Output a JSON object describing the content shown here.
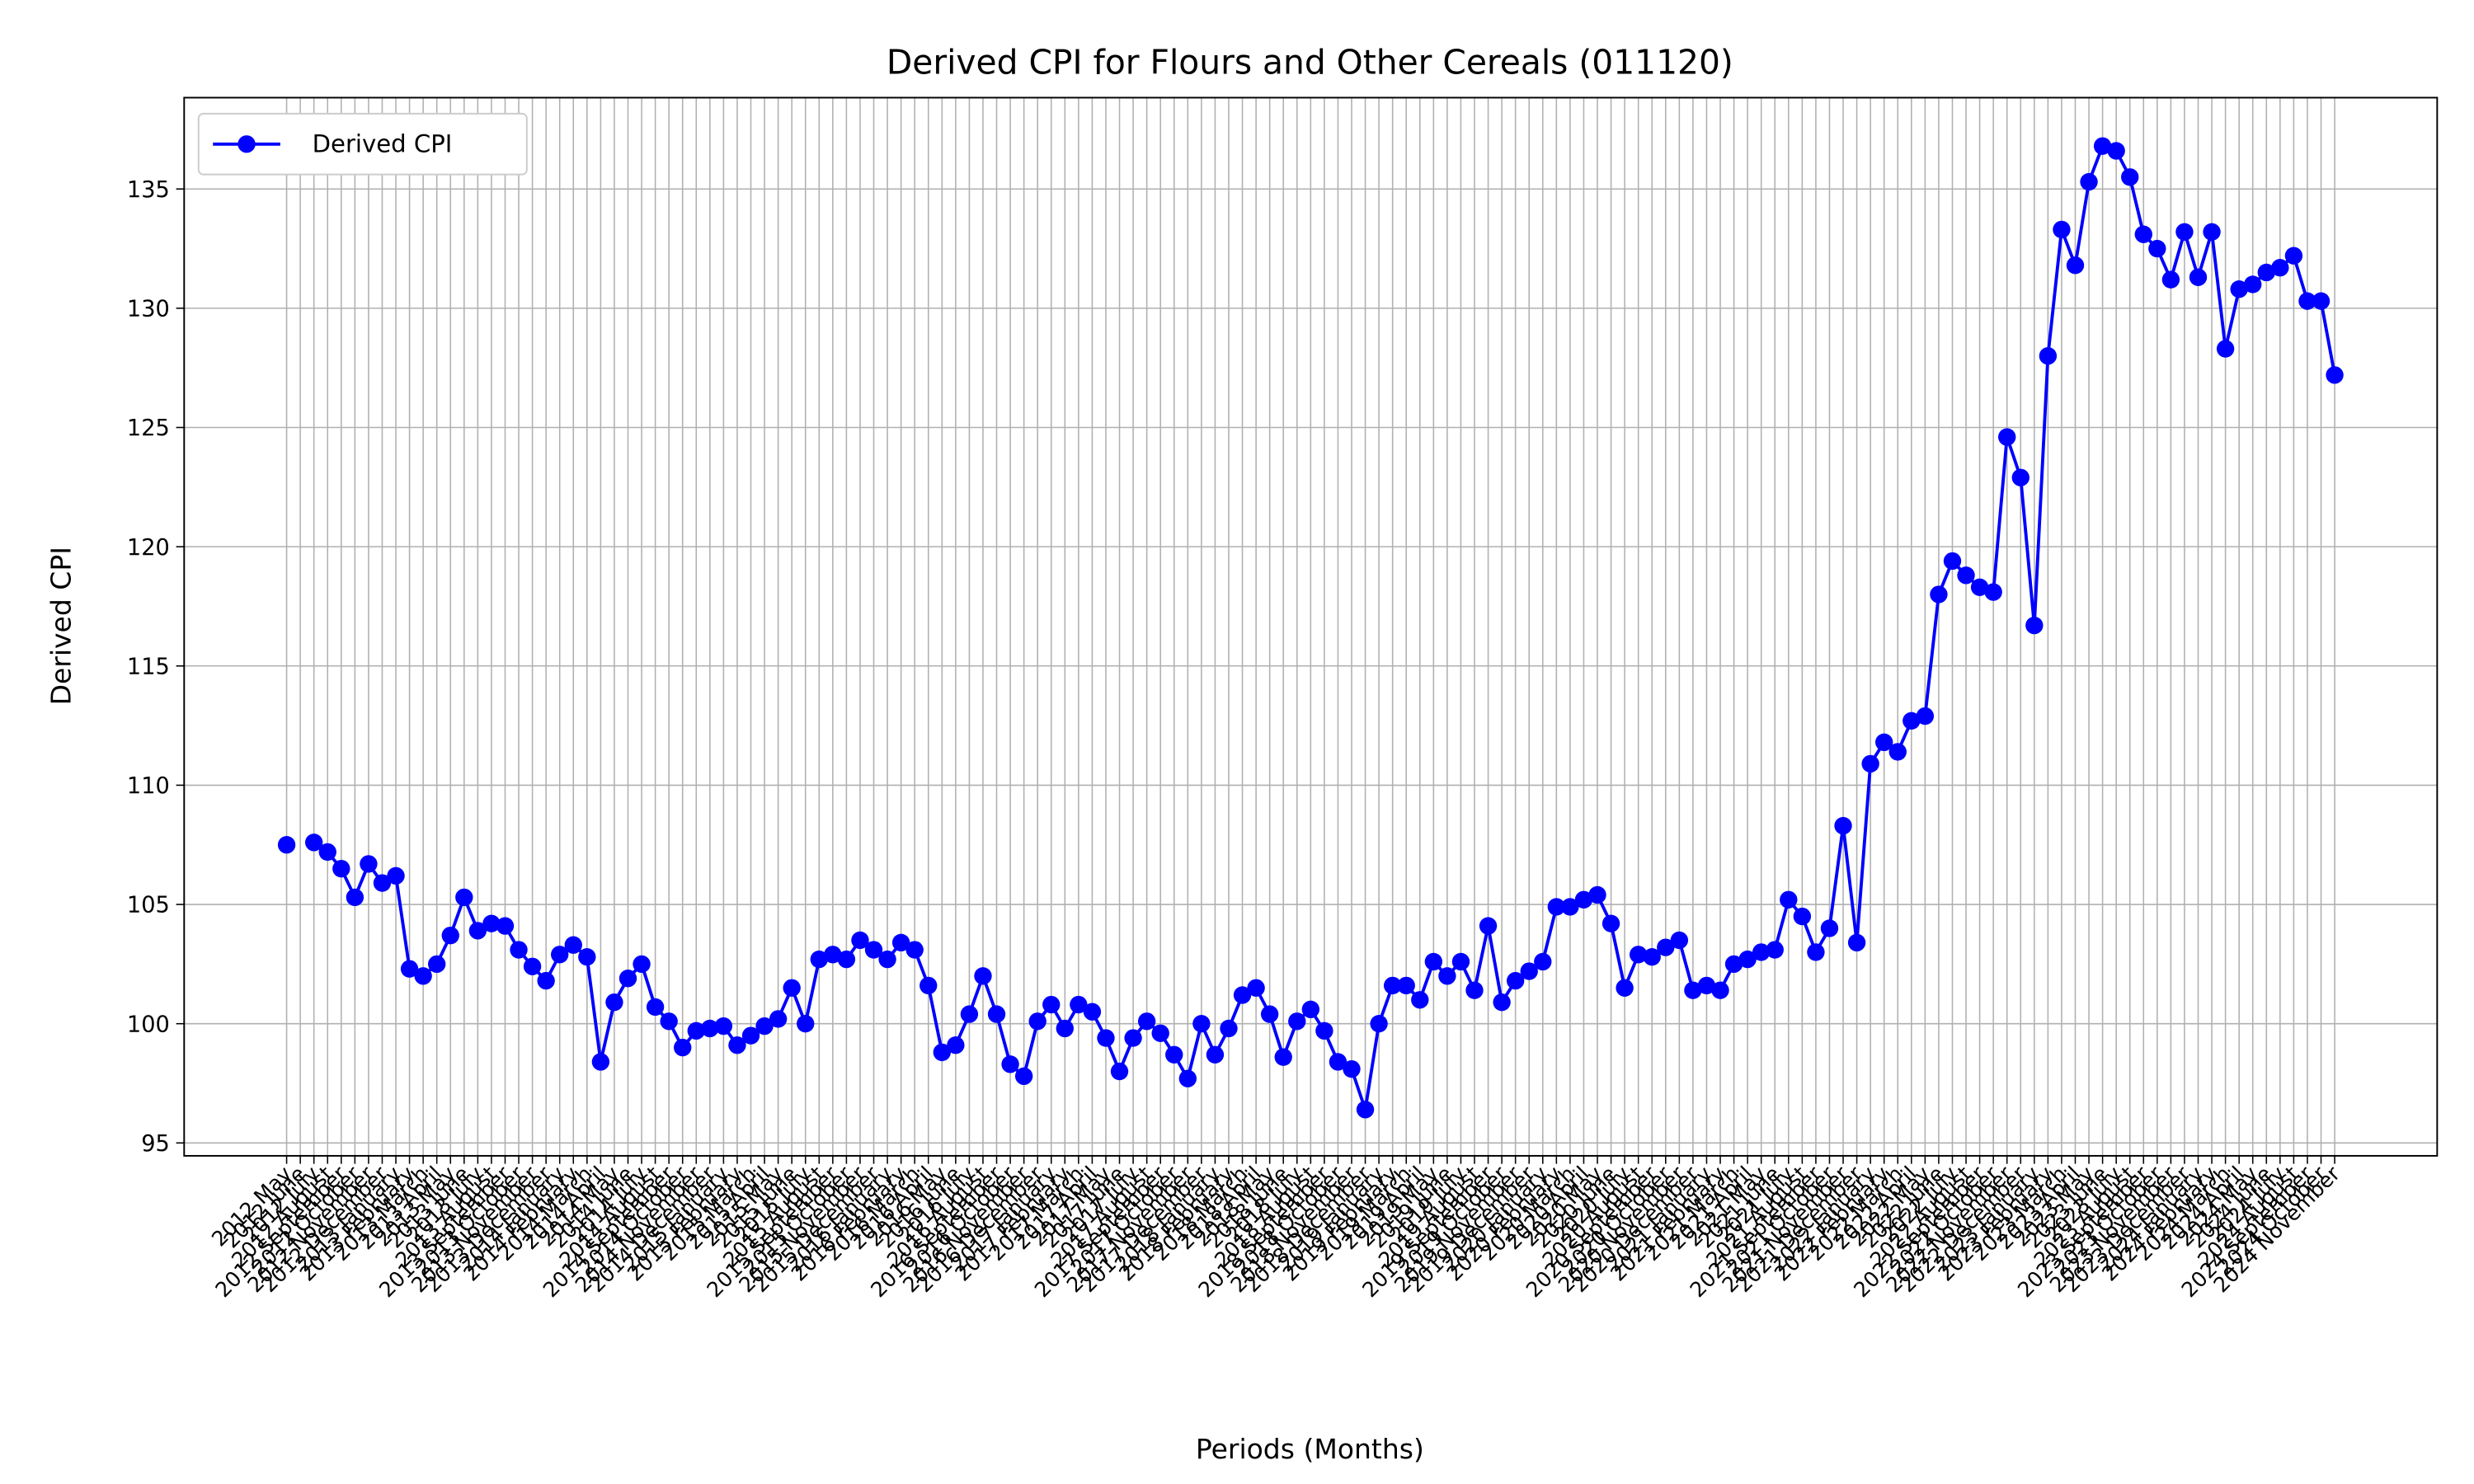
{
  "chart_data": {
    "type": "line",
    "title": "Derived CPI for Flours and Other Cereals (011120)",
    "x_label": "Periods (Months)",
    "y_label": "Derived CPI",
    "categories": [
      "2012 May",
      "2012 June",
      "2012 July",
      "2012 August",
      "2012 September",
      "2012 October",
      "2012 November",
      "2012 December",
      "2013 January",
      "2013 February",
      "2013 March",
      "2013 April",
      "2013 May",
      "2013 June",
      "2013 July",
      "2013 August",
      "2013 September",
      "2013 October",
      "2013 November",
      "2013 December",
      "2014 January",
      "2014 February",
      "2014 March",
      "2014 April",
      "2014 May",
      "2014 June",
      "2014 July",
      "2014 August",
      "2014 September",
      "2014 October",
      "2014 November",
      "2014 December",
      "2015 January",
      "2015 February",
      "2015 March",
      "2015 April",
      "2015 May",
      "2015 June",
      "2015 July",
      "2015 August",
      "2015 September",
      "2015 October",
      "2015 November",
      "2015 December",
      "2016 January",
      "2016 February",
      "2016 March",
      "2016 April",
      "2016 May",
      "2016 June",
      "2016 July",
      "2016 August",
      "2016 September",
      "2016 October",
      "2016 November",
      "2016 December",
      "2017 January",
      "2017 February",
      "2017 March",
      "2017 April",
      "2017 May",
      "2017 June",
      "2017 July",
      "2017 August",
      "2017 September",
      "2017 October",
      "2017 November",
      "2017 December",
      "2018 January",
      "2018 February",
      "2018 March",
      "2018 April",
      "2018 May",
      "2018 June",
      "2018 July",
      "2018 August",
      "2018 September",
      "2018 October",
      "2018 November",
      "2018 December",
      "2019 January",
      "2019 February",
      "2019 March",
      "2019 April",
      "2019 May",
      "2019 June",
      "2019 July",
      "2019 August",
      "2019 September",
      "2019 October",
      "2019 November",
      "2019 December",
      "2020 January",
      "2020 February",
      "2020 March",
      "2020 April",
      "2020 May",
      "2020 June",
      "2020 July",
      "2020 August",
      "2020 September",
      "2020 October",
      "2020 November",
      "2020 December",
      "2021 January",
      "2021 February",
      "2021 March",
      "2021 April",
      "2021 May",
      "2021 June",
      "2021 July",
      "2021 August",
      "2021 September",
      "2021 October",
      "2021 November",
      "2021 December",
      "2022 January",
      "2022 February",
      "2022 March",
      "2022 April",
      "2022 May",
      "2022 June",
      "2022 July",
      "2022 August",
      "2022 September",
      "2022 October",
      "2022 November",
      "2022 December",
      "2023 January",
      "2023 February",
      "2023 March",
      "2023 April",
      "2023 May",
      "2023 June",
      "2023 July",
      "2023 August",
      "2023 September",
      "2023 October",
      "2023 November",
      "2023 December",
      "2024 January",
      "2024 February",
      "2024 March",
      "2024 April",
      "2024 May",
      "2024 June",
      "2024 July",
      "2024 August",
      "2024 September",
      "2024 October",
      "2024 November"
    ],
    "series": [
      {
        "name": "Derived CPI",
        "color": "#0000ff",
        "values": [
          107.5,
          null,
          107.6,
          107.2,
          106.5,
          105.3,
          106.7,
          105.9,
          106.2,
          102.3,
          102.0,
          102.5,
          103.7,
          105.3,
          103.9,
          104.2,
          104.1,
          103.1,
          102.4,
          101.8,
          102.9,
          103.3,
          102.8,
          98.4,
          100.9,
          101.9,
          102.5,
          100.7,
          100.1,
          99.0,
          99.7,
          99.8,
          99.9,
          99.1,
          99.5,
          99.9,
          100.2,
          101.5,
          100.0,
          102.7,
          102.9,
          102.7,
          103.5,
          103.1,
          102.7,
          103.4,
          103.1,
          101.6,
          98.8,
          99.1,
          100.4,
          102.0,
          100.4,
          98.3,
          97.8,
          100.1,
          100.8,
          99.8,
          100.8,
          100.5,
          99.4,
          98.0,
          99.4,
          100.1,
          99.6,
          98.7,
          97.7,
          100.0,
          98.7,
          99.8,
          101.2,
          101.5,
          100.4,
          98.6,
          100.1,
          100.6,
          99.7,
          98.4,
          98.1,
          96.4,
          100.0,
          101.6,
          101.6,
          101.0,
          102.6,
          102.0,
          102.6,
          101.4,
          104.1,
          100.9,
          101.8,
          102.2,
          102.6,
          104.9,
          104.9,
          105.2,
          105.4,
          104.2,
          101.5,
          102.9,
          102.8,
          103.2,
          103.5,
          101.4,
          101.6,
          101.4,
          102.5,
          102.7,
          103.0,
          103.1,
          105.2,
          104.5,
          103.0,
          104.0,
          108.3,
          103.4,
          110.9,
          111.8,
          111.4,
          112.7,
          112.9,
          118.0,
          119.4,
          118.8,
          118.3,
          118.1,
          124.6,
          122.9,
          116.7,
          128.0,
          133.3,
          131.8,
          135.3,
          136.8,
          136.6,
          135.5,
          133.1,
          132.5,
          131.2,
          133.2,
          131.3,
          133.2,
          128.3,
          130.8,
          131.0,
          131.5,
          131.7,
          132.2,
          130.3,
          130.3,
          127.2
        ]
      }
    ],
    "ylim": [
      94.46,
      138.83
    ],
    "yticks": [
      95,
      100,
      105,
      110,
      115,
      120,
      125,
      130,
      135
    ],
    "grid": true,
    "legend": "upper left"
  }
}
